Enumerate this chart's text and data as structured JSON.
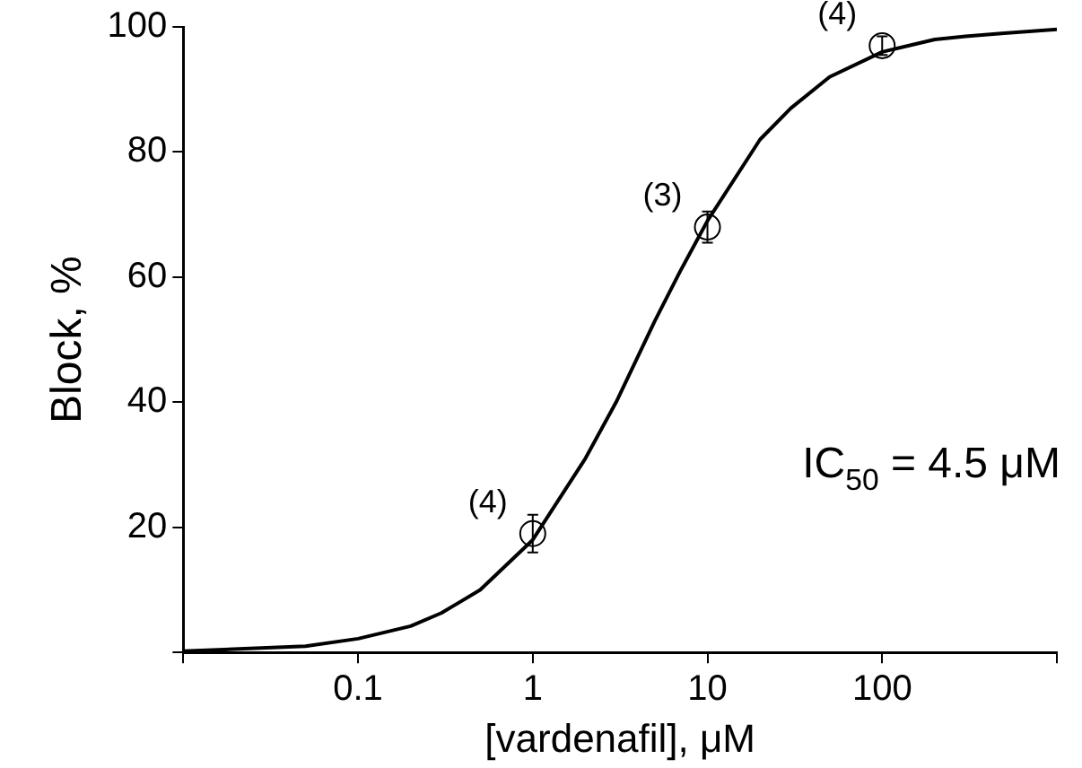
{
  "chart_data": {
    "type": "line",
    "xlabel": "[vardenafil], μM",
    "ylabel": "Block, %",
    "log": "x",
    "xlim": [
      0.01,
      1000
    ],
    "xticks": [
      {
        "value": 0.01,
        "label": null
      },
      0.1,
      1,
      10,
      100,
      {
        "value": 1000,
        "label": null
      }
    ],
    "ylim": [
      0,
      100
    ],
    "yticks": [
      {
        "value": 0,
        "label": null
      },
      20,
      40,
      60,
      80,
      100
    ],
    "grid": false,
    "legend": false,
    "series": [
      {
        "marker": "none",
        "line_style": "solid",
        "color": "#000000",
        "x": [
          0.01,
          0.05,
          0.1,
          0.2,
          0.3,
          0.5,
          1,
          2,
          3,
          5,
          7,
          10,
          20,
          30,
          50,
          100,
          200,
          300,
          500,
          1000
        ],
        "values": [
          0.2,
          1,
          2.2,
          4.2,
          6.3,
          10,
          18,
          31,
          40,
          53,
          61,
          69,
          82,
          87,
          92,
          96,
          98,
          98.5,
          99,
          99.6
        ]
      },
      {
        "type": "scatter",
        "marker": "circle",
        "color": "#000000",
        "x": [
          1,
          10,
          100
        ],
        "values": [
          19,
          68,
          97
        ],
        "errors": [
          3,
          2.5,
          1.5
        ]
      }
    ],
    "annotations": [
      {
        "text": "(4)",
        "x": 1,
        "y": 19
      },
      {
        "text": "(3)",
        "x": 10,
        "y": 68
      },
      {
        "text": "(4)",
        "x": 100,
        "y": 97
      },
      "IC$_{50}$ = 4.5 μM"
    ]
  }
}
